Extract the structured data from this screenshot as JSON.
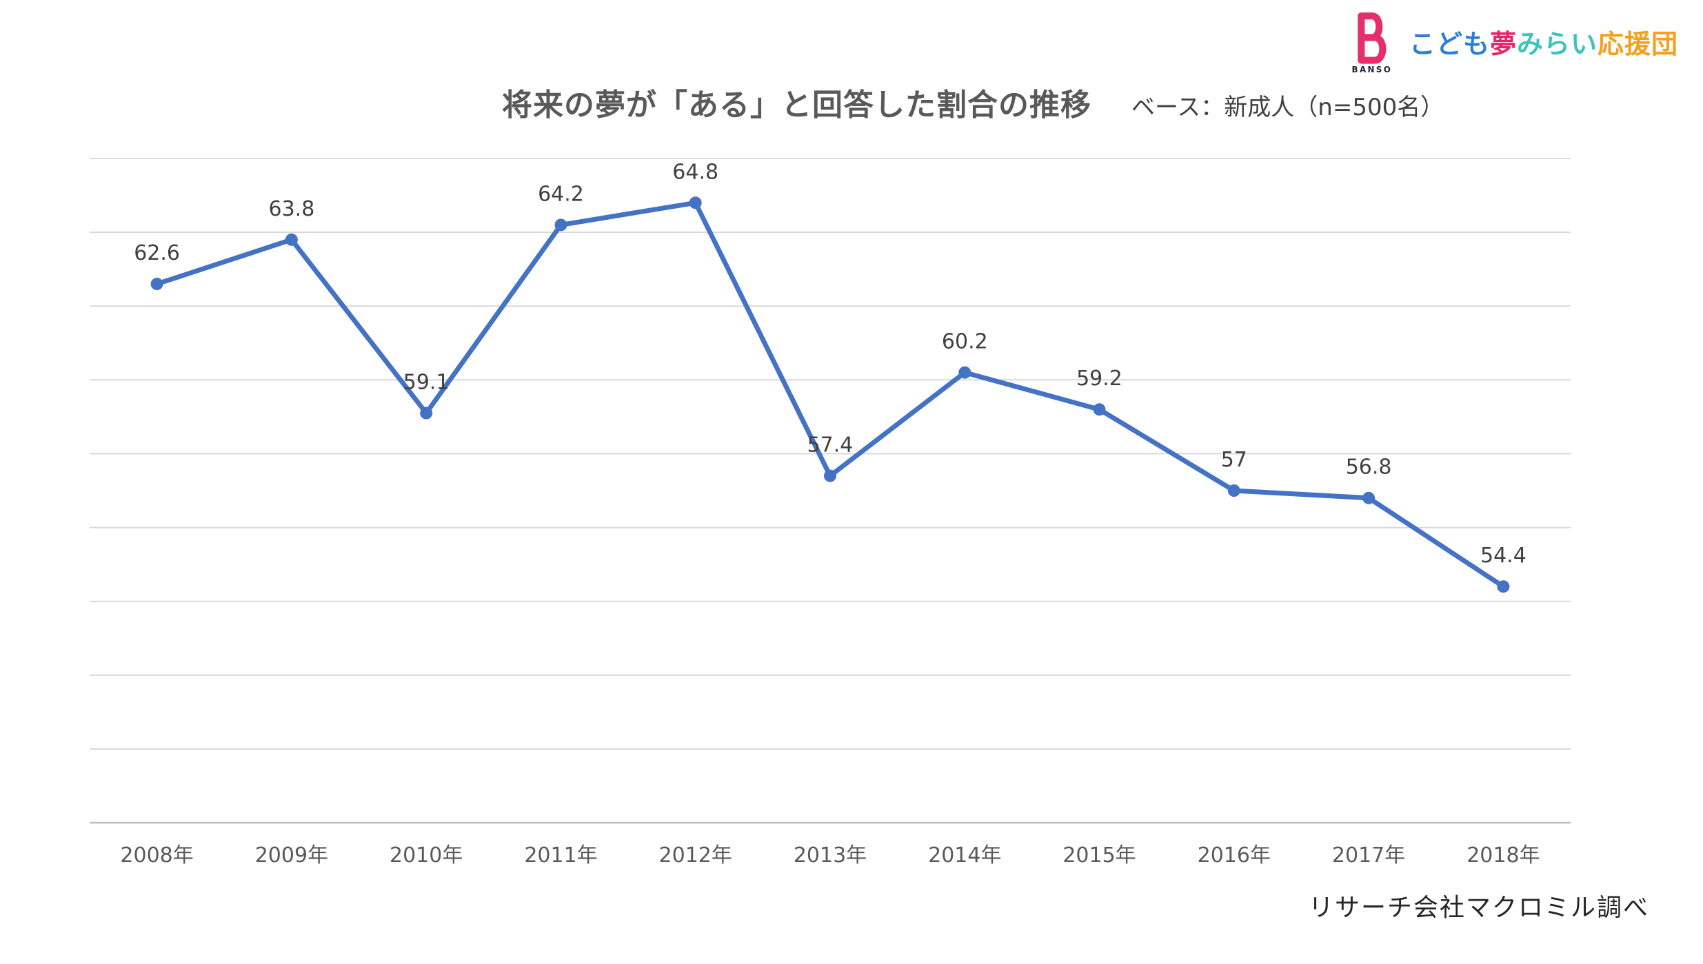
{
  "logo": {
    "mark_letter": "B",
    "mark_sub": "BANSO",
    "mark_color": "#E62E6B",
    "sub_color": "#23233B",
    "segments": [
      {
        "text": "こども",
        "color": "#2B7FD4"
      },
      {
        "text": "夢",
        "color": "#E62568"
      },
      {
        "text": "みらい",
        "color": "#39C5BB"
      },
      {
        "text": "応援団",
        "color": "#F5A01D"
      }
    ]
  },
  "chart_data": {
    "type": "line",
    "title": "将来の夢が「ある」と回答した割合の推移",
    "subtitle": "ベース：新成人（n=500名）",
    "source": "リサーチ会社マクロミル調べ",
    "categories": [
      "2008年",
      "2009年",
      "2010年",
      "2011年",
      "2012年",
      "2013年",
      "2014年",
      "2015年",
      "2016年",
      "2017年",
      "2018年"
    ],
    "values": [
      62.6,
      63.8,
      59.1,
      64.2,
      64.8,
      57.4,
      60.2,
      59.2,
      57,
      56.8,
      54.4
    ],
    "xlabel": "",
    "ylabel": "",
    "ylim": [
      48,
      66
    ],
    "grid_step": 2,
    "grid": true,
    "legend": "none",
    "data_labels": true,
    "line_color": "#4472C4",
    "marker": "circle",
    "grid_color": "#D9D9D9",
    "axis_color": "#BFBFBF",
    "data_label_color": "#404040",
    "tick_label_color": "#595959"
  }
}
